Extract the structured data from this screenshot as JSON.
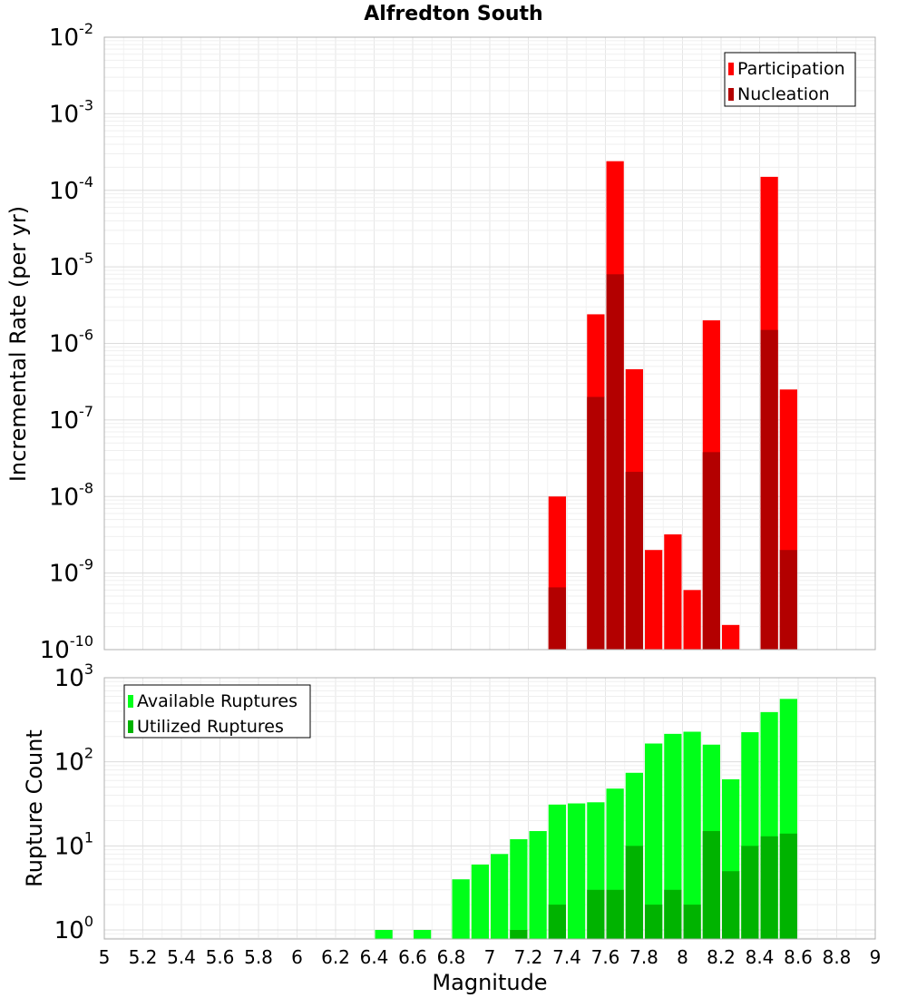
{
  "title": "Alfredton South",
  "chart_data": [
    {
      "type": "bar",
      "panel": "top",
      "ylabel": "Incremental Rate (per yr)",
      "yscale": "log",
      "ylim": [
        1e-10,
        0.01
      ],
      "xlim": [
        5,
        9
      ],
      "bin_width": 0.1,
      "series": [
        {
          "name": "Participation",
          "color": "#ff0000",
          "points": [
            {
              "x": 7.35,
              "y": 1e-08
            },
            {
              "x": 7.55,
              "y": 2.4e-06
            },
            {
              "x": 7.65,
              "y": 0.00024
            },
            {
              "x": 7.75,
              "y": 4.6e-07
            },
            {
              "x": 7.85,
              "y": 2e-09
            },
            {
              "x": 7.95,
              "y": 3.2e-09
            },
            {
              "x": 8.05,
              "y": 6e-10
            },
            {
              "x": 8.15,
              "y": 2e-06
            },
            {
              "x": 8.25,
              "y": 2.1e-10
            },
            {
              "x": 8.45,
              "y": 0.00015
            },
            {
              "x": 8.55,
              "y": 2.5e-07
            }
          ]
        },
        {
          "name": "Nucleation",
          "color": "#b30000",
          "points": [
            {
              "x": 7.35,
              "y": 6.5e-10
            },
            {
              "x": 7.55,
              "y": 2e-07
            },
            {
              "x": 7.65,
              "y": 8e-06
            },
            {
              "x": 7.75,
              "y": 2.1e-08
            },
            {
              "x": 8.15,
              "y": 3.8e-08
            },
            {
              "x": 8.45,
              "y": 1.5e-06
            },
            {
              "x": 8.55,
              "y": 2e-09
            }
          ]
        }
      ],
      "legend": [
        "Participation",
        "Nucleation"
      ],
      "legend_position": "top-right"
    },
    {
      "type": "bar",
      "panel": "bottom",
      "xlabel": "Magnitude",
      "ylabel": "Rupture Count",
      "yscale": "log",
      "ylim": [
        0.78,
        1000
      ],
      "xlim": [
        5,
        9
      ],
      "bin_width": 0.1,
      "xticks": [
        "5",
        "5.2",
        "5.4",
        "5.6",
        "5.8",
        "6",
        "6.2",
        "6.4",
        "6.6",
        "6.8",
        "7",
        "7.2",
        "7.4",
        "7.6",
        "7.8",
        "8",
        "8.2",
        "8.4",
        "8.6",
        "8.8",
        "9"
      ],
      "series": [
        {
          "name": "Available Ruptures",
          "color": "#00ff19",
          "points": [
            {
              "x": 6.45,
              "y": 1
            },
            {
              "x": 6.65,
              "y": 1
            },
            {
              "x": 6.85,
              "y": 4
            },
            {
              "x": 6.95,
              "y": 6
            },
            {
              "x": 7.05,
              "y": 8
            },
            {
              "x": 7.15,
              "y": 12
            },
            {
              "x": 7.25,
              "y": 15
            },
            {
              "x": 7.35,
              "y": 31
            },
            {
              "x": 7.45,
              "y": 32
            },
            {
              "x": 7.55,
              "y": 33
            },
            {
              "x": 7.65,
              "y": 48
            },
            {
              "x": 7.75,
              "y": 74
            },
            {
              "x": 7.85,
              "y": 165
            },
            {
              "x": 7.95,
              "y": 215
            },
            {
              "x": 8.05,
              "y": 228
            },
            {
              "x": 8.15,
              "y": 160
            },
            {
              "x": 8.25,
              "y": 62
            },
            {
              "x": 8.35,
              "y": 225
            },
            {
              "x": 8.45,
              "y": 390
            },
            {
              "x": 8.55,
              "y": 560
            }
          ]
        },
        {
          "name": "Utilized Ruptures",
          "color": "#00b300",
          "points": [
            {
              "x": 7.15,
              "y": 1
            },
            {
              "x": 7.35,
              "y": 2
            },
            {
              "x": 7.55,
              "y": 3
            },
            {
              "x": 7.65,
              "y": 3
            },
            {
              "x": 7.75,
              "y": 10
            },
            {
              "x": 7.85,
              "y": 2
            },
            {
              "x": 7.95,
              "y": 3
            },
            {
              "x": 8.05,
              "y": 2
            },
            {
              "x": 8.15,
              "y": 15
            },
            {
              "x": 8.25,
              "y": 5
            },
            {
              "x": 8.35,
              "y": 10
            },
            {
              "x": 8.45,
              "y": 13
            },
            {
              "x": 8.55,
              "y": 14
            }
          ]
        }
      ],
      "legend": [
        "Available Ruptures",
        "Utilized Ruptures"
      ],
      "legend_position": "top-left"
    }
  ],
  "top_yticks": [
    {
      "base": "10",
      "exp": "-10",
      "value": 1e-10
    },
    {
      "base": "10",
      "exp": "-9",
      "value": 1e-09
    },
    {
      "base": "10",
      "exp": "-8",
      "value": 1e-08
    },
    {
      "base": "10",
      "exp": "-7",
      "value": 1e-07
    },
    {
      "base": "10",
      "exp": "-6",
      "value": 1e-06
    },
    {
      "base": "10",
      "exp": "-5",
      "value": 1e-05
    },
    {
      "base": "10",
      "exp": "-4",
      "value": 0.0001
    },
    {
      "base": "10",
      "exp": "-3",
      "value": 0.001
    },
    {
      "base": "10",
      "exp": "-2",
      "value": 0.01
    }
  ],
  "bottom_yticks": [
    {
      "base": "10",
      "exp": "0",
      "value": 1
    },
    {
      "base": "10",
      "exp": "1",
      "value": 10
    },
    {
      "base": "10",
      "exp": "2",
      "value": 100
    },
    {
      "base": "10",
      "exp": "3",
      "value": 1000
    }
  ]
}
